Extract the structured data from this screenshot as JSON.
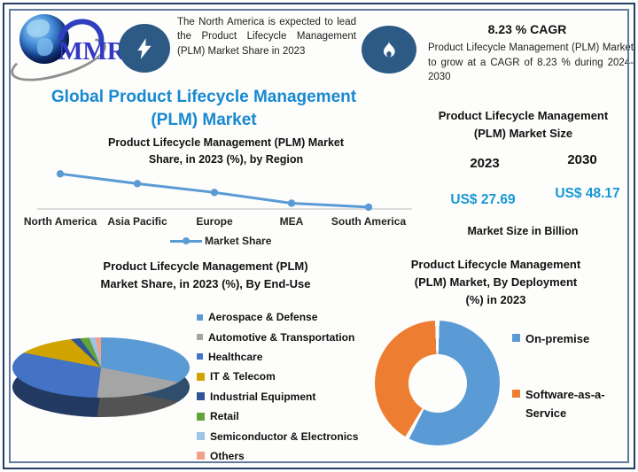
{
  "brand": {
    "logo_text": "MMR"
  },
  "header": {
    "headline": "The North America is expected to lead the Product Lifecycle Management (PLM) Market Share in 2023",
    "cagr_title": "8.23 % CAGR",
    "cagr_text": "Product Lifecycle Management (PLM) Market to grow at a CAGR of 8.23 % during 2024-2030"
  },
  "main_title": {
    "lines": [
      "Global Product Lifecycle Management",
      "(PLM) Market"
    ]
  },
  "region_section": {
    "title_lines": [
      "Product Lifecycle Management (PLM) Market",
      "Share, in 2023 (%), by Region"
    ],
    "legend_label": "Market Share"
  },
  "market_size": {
    "title_lines": [
      "Product Lifecycle Management",
      "(PLM) Market Size"
    ],
    "years": [
      "2023",
      "2030"
    ],
    "values": [
      "US$ 27.69",
      "US$ 48.17"
    ],
    "footnote": "Market Size in Billion"
  },
  "end_use_section": {
    "title_lines": [
      "Product Lifecycle Management (PLM)",
      "Market Share, in 2023 (%), By End-Use"
    ]
  },
  "deployment_section": {
    "title_lines": [
      "Product Lifecycle Management",
      "(PLM) Market, By Deployment",
      "(%) in 2023"
    ]
  },
  "icons": {
    "logo": "globe-logo",
    "top_left_badge": "lightning-icon",
    "top_right_badge": "flame-icon"
  },
  "colors": {
    "title_blue": "#1789D1",
    "value_blue": "#1697D6",
    "badge_navy": "#2C5A85",
    "line_chart_blue": "#5B9BD5",
    "axis_gray": "#C9C9C9",
    "border_outer": "#223F63",
    "border_inner": "#5E7CA0"
  },
  "chart_data": [
    {
      "type": "line",
      "title": "Product Lifecycle Management (PLM) Market Share, in 2023 (%), by Region",
      "categories": [
        "North America",
        "Asia Pacific",
        "Europe",
        "MEA",
        "South America"
      ],
      "series": [
        {
          "name": "Market Share",
          "values": [
            35,
            25,
            16,
            5,
            1
          ],
          "color": "#5B9BD5"
        }
      ],
      "ylim": [
        0,
        38
      ],
      "grid": false,
      "legend_position": "bottom"
    },
    {
      "type": "pie",
      "title": "Product Lifecycle Management (PLM) Market Share, in 2023 (%), By End-Use",
      "categories": [
        "Aerospace & Defense",
        "Automotive & Transportation",
        "Healthcare",
        "IT & Telecom",
        "Industrial Equipment",
        "Retail",
        "Semiconductor & Electronics",
        "Others"
      ],
      "values": [
        28,
        24,
        26,
        9,
        3,
        4,
        3,
        3
      ],
      "colors": [
        "#5B9BD5",
        "#A5A5A5",
        "#4472C4",
        "#D0A300",
        "#2F5597",
        "#63A23C",
        "#9DC3E6",
        "#F2A088"
      ],
      "style": "pie-3d",
      "legend_position": "right"
    },
    {
      "type": "pie",
      "title": "Product Lifecycle Management (PLM) Market, By Deployment (%) in 2023",
      "categories": [
        "On-premise",
        "Software-as-a-Service"
      ],
      "values": [
        58,
        42
      ],
      "colors": [
        "#5B9BD5",
        "#ED7D31"
      ],
      "style": "donut",
      "legend_position": "right"
    }
  ]
}
